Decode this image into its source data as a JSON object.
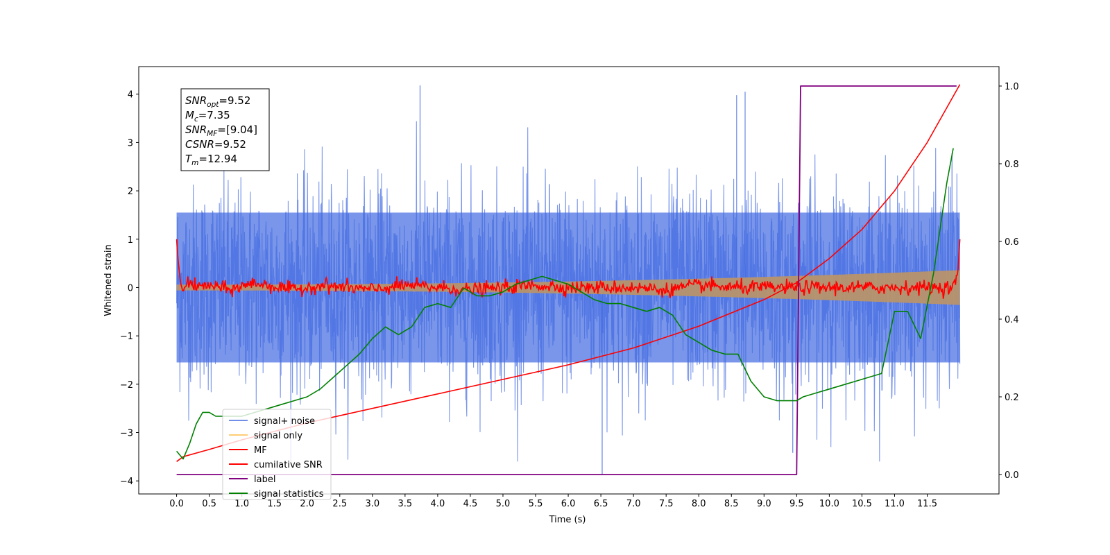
{
  "chart_data": {
    "type": "line",
    "title": "",
    "xlabel": "Time (s)",
    "ylabel": "Whitened strain",
    "y2label": "",
    "xlim": [
      -0.58,
      12.6
    ],
    "ylim": [
      -4.27,
      4.57
    ],
    "y2lim": [
      -0.05,
      1.05
    ],
    "x_ticks": [
      "0.0",
      "0.5",
      "1.0",
      "1.5",
      "2.0",
      "2.5",
      "3.0",
      "3.5",
      "4.0",
      "4.5",
      "5.0",
      "5.5",
      "6.0",
      "6.5",
      "7.0",
      "7.5",
      "8.0",
      "8.5",
      "9.0",
      "9.5",
      "10.0",
      "10.5",
      "11.0",
      "11.5"
    ],
    "y_ticks": [
      "−4",
      "−3",
      "−2",
      "−1",
      "0",
      "1",
      "2",
      "3",
      "4"
    ],
    "y2_ticks": [
      "0.0",
      "0.2",
      "0.4",
      "0.6",
      "0.8",
      "1.0"
    ],
    "grid": false,
    "legend_position": "lower-left",
    "annotation": {
      "lines": [
        {
          "main": "SNR",
          "sub": "opt",
          "value": "=9.52"
        },
        {
          "main": "M",
          "sub": "c",
          "value": "=7.35"
        },
        {
          "main": "SNR",
          "sub": "MF",
          "value": "=[9.04]"
        },
        {
          "main": "CSNR",
          "sub": "",
          "value": "=9.52"
        },
        {
          "main": "T",
          "sub": "m",
          "value": "=12.94"
        }
      ]
    },
    "series": [
      {
        "name": "signal+ noise",
        "color": "#4169e1",
        "axis": "left",
        "style": "noise-band",
        "x_range": [
          0.0,
          12.0
        ],
        "envelope_upper": 2.5,
        "envelope_lower": -2.5,
        "peaks": [
          {
            "x": 3.73,
            "y": 4.18
          },
          {
            "x": 6.52,
            "y": -3.88
          },
          {
            "x": 9.44,
            "y": -3.42
          },
          {
            "x": 8.58,
            "y": 3.98
          },
          {
            "x": 8.71,
            "y": 4.05
          },
          {
            "x": 11.88,
            "y": 2.78
          }
        ]
      },
      {
        "name": "signal only",
        "color": "#ffa500",
        "axis": "left",
        "style": "chirp-band",
        "x_range": [
          0.0,
          12.0
        ],
        "amplitude_start": 0.06,
        "amplitude_end": 0.36
      },
      {
        "name": "MF",
        "color": "#ff0000",
        "axis": "left",
        "style": "oscillating",
        "x": [
          0.0,
          0.02,
          0.06,
          0.1,
          0.15,
          0.3,
          0.5,
          0.8,
          1.2,
          1.5,
          1.8,
          2.2,
          2.6,
          3.0,
          3.5,
          4.0,
          4.5,
          5.0,
          5.5,
          6.0,
          6.5,
          7.0,
          7.5,
          8.0,
          8.5,
          9.0,
          9.5,
          10.0,
          10.5,
          11.0,
          11.5,
          11.9,
          11.97,
          12.0
        ],
        "y": [
          1.0,
          0.6,
          0.1,
          -0.1,
          0.15,
          0.0,
          0.05,
          -0.05,
          0.1,
          0.02,
          -0.05,
          0.05,
          0.0,
          -0.05,
          0.05,
          0.0,
          -0.05,
          0.0,
          0.05,
          0.0,
          0.0,
          0.0,
          -0.05,
          0.05,
          0.0,
          0.0,
          0.0,
          0.0,
          0.0,
          0.0,
          0.0,
          0.0,
          0.3,
          1.0
        ]
      },
      {
        "name": "cumilative SNR",
        "color": "#ff0000",
        "axis": "left",
        "x": [
          0.0,
          0.1,
          0.5,
          1.0,
          2.0,
          3.0,
          4.0,
          5.0,
          6.0,
          7.0,
          8.0,
          9.0,
          9.5,
          10.0,
          10.5,
          11.0,
          11.5,
          12.0
        ],
        "y": [
          -3.6,
          -3.5,
          -3.35,
          -3.15,
          -2.8,
          -2.5,
          -2.2,
          -1.9,
          -1.6,
          -1.25,
          -0.8,
          -0.25,
          0.1,
          0.6,
          1.2,
          2.0,
          3.0,
          4.2
        ]
      },
      {
        "name": "label",
        "color": "#800080",
        "axis": "right",
        "x": [
          0.0,
          9.5,
          9.56,
          11.95
        ],
        "y": [
          0.0,
          0.0,
          1.0,
          1.0
        ]
      },
      {
        "name": "signal statistics",
        "color": "#008000",
        "axis": "right",
        "x": [
          0.0,
          0.1,
          0.2,
          0.3,
          0.4,
          0.5,
          0.6,
          0.7,
          0.8,
          1.0,
          1.2,
          1.4,
          1.6,
          1.8,
          2.0,
          2.2,
          2.4,
          2.6,
          2.8,
          3.0,
          3.2,
          3.4,
          3.6,
          3.8,
          4.0,
          4.2,
          4.4,
          4.6,
          4.8,
          5.0,
          5.2,
          5.4,
          5.6,
          5.8,
          6.0,
          6.2,
          6.4,
          6.6,
          6.8,
          7.0,
          7.2,
          7.4,
          7.6,
          7.8,
          8.0,
          8.2,
          8.4,
          8.6,
          8.8,
          9.0,
          9.2,
          9.4,
          9.5,
          9.6,
          9.8,
          10.0,
          10.2,
          10.4,
          10.6,
          10.8,
          11.0,
          11.2,
          11.4,
          11.6,
          11.8,
          11.9
        ],
        "y": [
          0.06,
          0.04,
          0.08,
          0.13,
          0.16,
          0.16,
          0.15,
          0.15,
          0.15,
          0.15,
          0.16,
          0.17,
          0.18,
          0.19,
          0.2,
          0.22,
          0.25,
          0.28,
          0.31,
          0.35,
          0.38,
          0.36,
          0.38,
          0.43,
          0.44,
          0.43,
          0.48,
          0.46,
          0.46,
          0.47,
          0.49,
          0.5,
          0.51,
          0.5,
          0.49,
          0.47,
          0.45,
          0.44,
          0.44,
          0.43,
          0.42,
          0.43,
          0.41,
          0.36,
          0.34,
          0.32,
          0.31,
          0.31,
          0.24,
          0.2,
          0.19,
          0.19,
          0.19,
          0.2,
          0.21,
          0.22,
          0.23,
          0.24,
          0.25,
          0.26,
          0.42,
          0.42,
          0.35,
          0.52,
          0.75,
          0.84
        ]
      }
    ]
  }
}
